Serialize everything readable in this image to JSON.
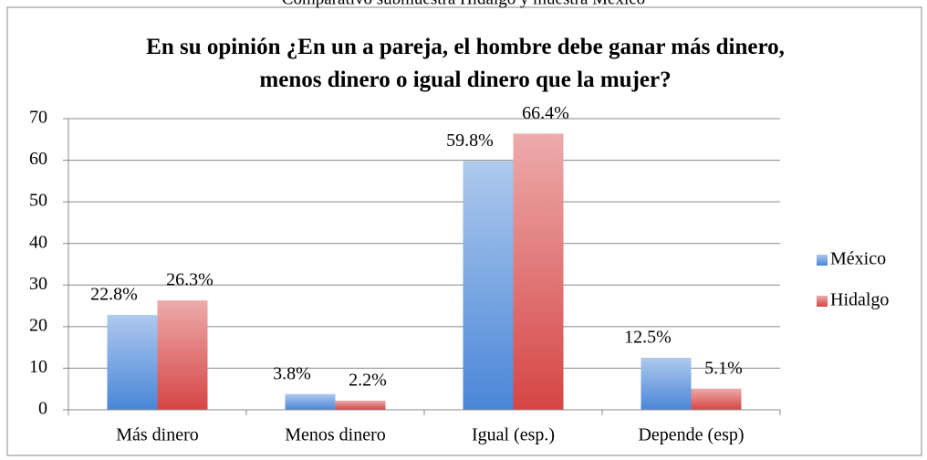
{
  "chart_data": {
    "type": "bar",
    "caption": "Comparativo submuestra Hidalgo y muestra México",
    "title": "En su opinión ¿En un a pareja, el hombre debe ganar más dinero, menos dinero o igual dinero que la mujer?",
    "categories": [
      "Más dinero",
      "Menos dinero",
      "Igual (esp.)",
      "Depende (esp)"
    ],
    "series": [
      {
        "name": "México",
        "color": "#4a86d8",
        "values": [
          22.8,
          3.8,
          59.8,
          12.5
        ],
        "value_labels": [
          "22.8%",
          "3.8%",
          "59.8%",
          "12.5%"
        ]
      },
      {
        "name": "Hidalgo",
        "color": "#d64545",
        "values": [
          26.3,
          2.2,
          66.4,
          5.1
        ],
        "value_labels": [
          "26.3%",
          "2.2%",
          "66.4%",
          "5.1%"
        ]
      }
    ],
    "ylim": [
      0,
      70
    ],
    "yticks": [
      0,
      10,
      20,
      30,
      40,
      50,
      60,
      70
    ],
    "grid": true,
    "legend": "right"
  }
}
